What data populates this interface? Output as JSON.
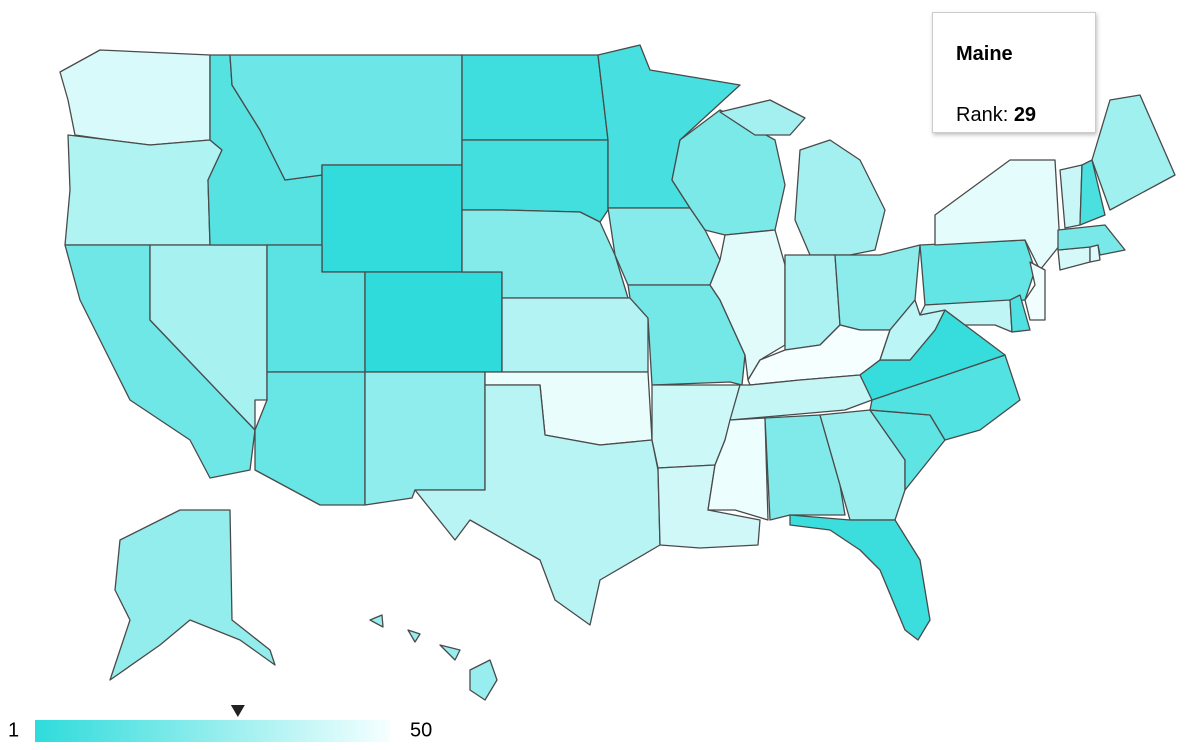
{
  "map": {
    "ranks": [
      43,
      33,
      17,
      31,
      11,
      16,
      2,
      12,
      15,
      1,
      25,
      5,
      6,
      22,
      34,
      47,
      35,
      7,
      23,
      18,
      40,
      41,
      20,
      45,
      30,
      32,
      24,
      50,
      38,
      48,
      21,
      28,
      4,
      13,
      10,
      3,
      36,
      14,
      46,
      37,
      9,
      49,
      42,
      44,
      19,
      39,
      8,
      29,
      26,
      27
    ],
    "scale": {
      "min": 1,
      "max": 50,
      "color_min": "#2fdbdb",
      "color_max": "#f5ffff"
    },
    "tooltip": {
      "title": "Maine",
      "label": "Rank:",
      "value": 29
    }
  }
}
